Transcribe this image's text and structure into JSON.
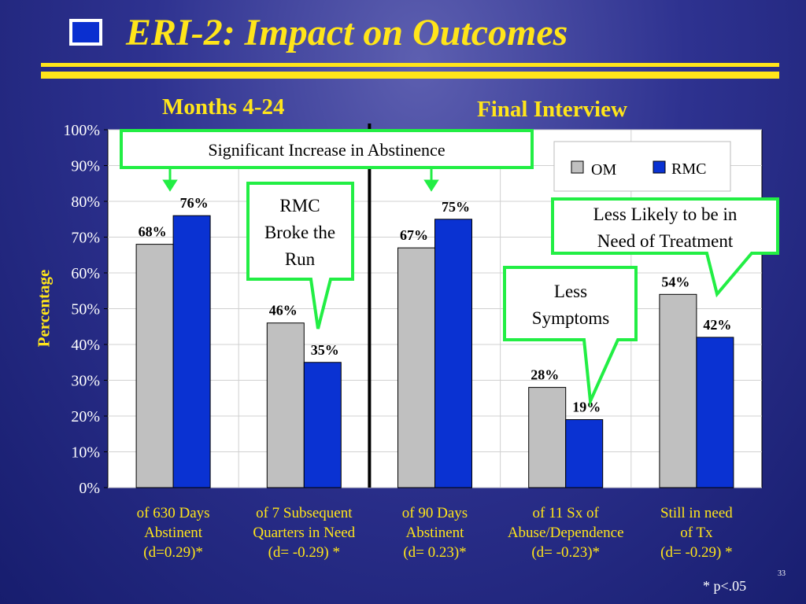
{
  "slide": {
    "title": "ERI-2:  Impact on Outcomes",
    "panels": [
      "Months 4-24",
      "Final Interview"
    ],
    "footnote": "* p<.05",
    "page_number": "33",
    "colors": {
      "accent": "#ffe51a",
      "background": "#2e3290",
      "callout_border": "#22ee44",
      "om": "#c0c0c0",
      "rmc": "#0a32d2"
    }
  },
  "chart_data": {
    "type": "bar",
    "ylabel": "Percentage",
    "ylim": [
      0,
      100
    ],
    "yticks": [
      "0%",
      "10%",
      "20%",
      "30%",
      "40%",
      "50%",
      "60%",
      "70%",
      "80%",
      "90%",
      "100%"
    ],
    "grid": true,
    "legend_position": "top-right",
    "categories": [
      [
        "of 630 Days",
        "Abstinent",
        "(d=0.29)*"
      ],
      [
        "of 7 Subsequent",
        "Quarters in Need",
        "(d= -0.29) *"
      ],
      [
        "of 90 Days",
        "Abstinent",
        "(d= 0.23)*"
      ],
      [
        "of 11 Sx of",
        "Abuse/Dependence",
        "(d= -0.23)*"
      ],
      [
        "Still in need",
        "of Tx",
        "(d= -0.29) *"
      ]
    ],
    "series": [
      {
        "name": "OM",
        "values": [
          68,
          46,
          67,
          28,
          54
        ],
        "labels": [
          "68%",
          "46%",
          "67%",
          "28%",
          "54%"
        ]
      },
      {
        "name": "RMC",
        "values": [
          76,
          35,
          75,
          19,
          42
        ],
        "labels": [
          "76%",
          "35%",
          "75%",
          "19%",
          "42%"
        ]
      }
    ],
    "annotations": [
      {
        "id": "abstinence",
        "text": "Significant Increase in Abstinence"
      },
      {
        "id": "run",
        "lines": [
          "RMC",
          "Broke the",
          "Run"
        ]
      },
      {
        "id": "symptoms",
        "lines": [
          "Less",
          "Symptoms"
        ]
      },
      {
        "id": "treatment",
        "lines": [
          "Less Likely to be in",
          "Need of Treatment"
        ]
      }
    ]
  }
}
